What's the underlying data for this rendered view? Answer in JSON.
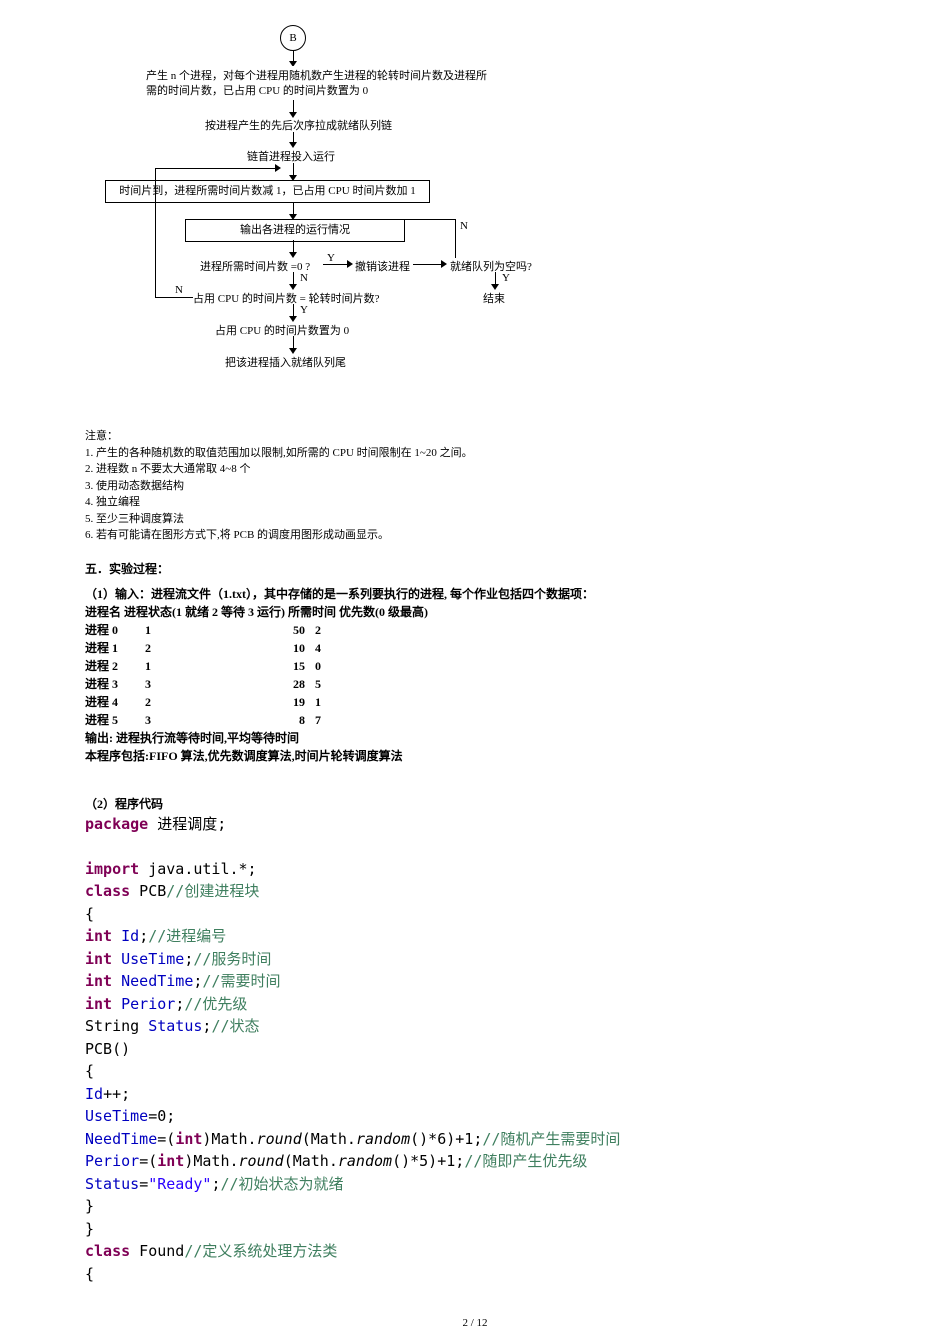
{
  "flowchart": {
    "start": "B",
    "box1": "产生 n 个进程，对每个进程用随机数产生进程的轮转时间片数及进程所需的时间片数，已占用 CPU 的时间片数置为 0",
    "box2": "按进程产生的先后次序拉成就绪队列链",
    "box3": "链首进程投入运行",
    "box4": "时间片到，进程所需时间片数减 1，已占用 CPU 时间片数加 1",
    "box5": "输出各进程的运行情况",
    "box6": "进程所需时间片数 =0 ?",
    "box6r": "撤销该进程",
    "box6r2": "就绪队列为空吗?",
    "box7": "占用 CPU 的时间片数 = 轮转时间片数?",
    "box8": "占用 CPU 的时间片数置为 0",
    "box9": "把该进程插入就绪队列尾",
    "end": "结束",
    "Y": "Y",
    "N": "N"
  },
  "notes": {
    "title": "注意：",
    "n1": "1.    产生的各种随机数的取值范围加以限制,如所需的 CPU 时间限制在 1~20 之间。",
    "n2": "2.    进程数 n 不要太大通常取 4~8 个",
    "n3": "3.    使用动态数据结构",
    "n4": "4.    独立编程",
    "n5": "5.    至少三种调度算法",
    "n6": "6.    若有可能请在图形方式下,将 PCB 的调度用图形成动画显示。"
  },
  "section5": "五．实验过程：",
  "input": {
    "title": "（1）输入：进程流文件（1.txt），其中存储的是一系列要执行的进程, 每个作业包括四个数据项：",
    "header": "进程名 进程状态(1 就绪 2 等待 3 运行) 所需时间 优先数(0 级最高)",
    "rows": [
      {
        "name": "进程 0",
        "state": "1",
        "time": "50",
        "prio": "2"
      },
      {
        "name": "进程 1",
        "state": "2",
        "time": "10",
        "prio": "4"
      },
      {
        "name": "进程 2",
        "state": "1",
        "time": "15",
        "prio": "0"
      },
      {
        "name": "进程 3",
        "state": "3",
        "time": "28",
        "prio": "5"
      },
      {
        "name": "进程 4",
        "state": "2",
        "time": "19",
        "prio": "1"
      },
      {
        "name": "进程 5",
        "state": "3",
        "time": "8",
        "prio": "7"
      }
    ],
    "out1": "输出: 进程执行流等待时间,平均等待时间",
    "out2": "本程序包括:FIFO 算法,优先数调度算法,时间片轮转调度算法"
  },
  "code": {
    "title": "（2）程序代码",
    "l1a": "package",
    "l1b": " 进程调度;",
    "l2a": "import",
    "l2b": " java.util.*;",
    "l3a": "class",
    "l3b": " PCB",
    "l3c": "//创建进程块",
    "l4": " {",
    "l5a": "int",
    "l5b": " Id",
    "l5c": ";",
    "l5d": "//进程编号",
    "l6a": " int",
    "l6b": " UseTime",
    "l6c": ";",
    "l6d": "//服务时间",
    "l7a": "  int",
    "l7b": " NeedTime",
    "l7c": ";",
    "l7d": "//需要时间",
    "l8a": "  int",
    "l8b": " Perior",
    "l8c": ";",
    "l8d": "//优先级",
    "l9a": "  String ",
    "l9b": "Status",
    "l9c": ";",
    "l9d": "//状态",
    "l10": " PCB()",
    "l11": " {",
    "l12a": " Id",
    "l12b": "++;",
    "l13a": " UseTime",
    "l13b": "=0;",
    "l14a": " NeedTime",
    "l14b": "=(",
    "l14c": "int",
    "l14d": ")Math.",
    "l14e": "round",
    "l14f": "(Math.",
    "l14g": "random",
    "l14h": "()*6)+1;",
    "l14i": "//随机产生需要时间",
    "l15a": " Perior",
    "l15b": "=(",
    "l15c": "int",
    "l15d": ")Math.",
    "l15e": "round",
    "l15f": "(Math.",
    "l15g": "random",
    "l15h": "()*5)+1;",
    "l15i": "//随即产生优先级",
    "l16a": " Status",
    "l16b": "=",
    "l16c": "\"Ready\"",
    "l16d": ";",
    "l16e": "//初始状态为就绪",
    "l17": " }",
    "l18": "}",
    "l19a": "class",
    "l19b": " Found",
    "l19c": "//定义系统处理方法类",
    "l20": " {"
  },
  "pageNum": "2 / 12"
}
